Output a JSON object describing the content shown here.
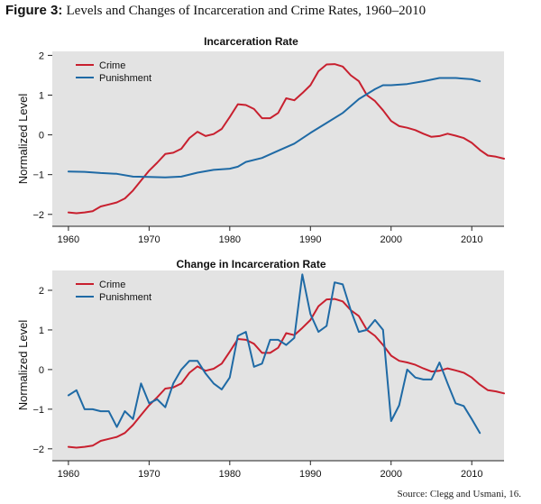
{
  "figure": {
    "label": "Figure 3:",
    "title": "Levels and Changes of Incarceration and Crime Rates, 1960–2010",
    "source": "Source: Clegg and Usmani, 16."
  },
  "colors": {
    "crime": "#c8202f",
    "punishment": "#1f6aa5",
    "panel_bg": "#e3e3e3"
  },
  "chart_data": [
    {
      "type": "line",
      "title": "Incarceration Rate",
      "xlabel": "",
      "ylabel": "Normalized Level",
      "xlim": [
        1958,
        2014
      ],
      "ylim": [
        -2.3,
        2.1
      ],
      "xticks": [
        1960,
        1970,
        1980,
        1990,
        2000,
        2010
      ],
      "yticks": [
        -2,
        -1,
        0,
        1,
        2
      ],
      "legend": "top-left",
      "series": [
        {
          "name": "Crime",
          "color": "#c8202f",
          "x": [
            1960,
            1961,
            1962,
            1963,
            1964,
            1965,
            1966,
            1967,
            1968,
            1969,
            1970,
            1971,
            1972,
            1973,
            1974,
            1975,
            1976,
            1977,
            1978,
            1979,
            1980,
            1981,
            1982,
            1983,
            1984,
            1985,
            1986,
            1987,
            1988,
            1989,
            1990,
            1991,
            1992,
            1993,
            1994,
            1995,
            1996,
            1997,
            1998,
            1999,
            2000,
            2001,
            2002,
            2003,
            2004,
            2005,
            2006,
            2007,
            2008,
            2009,
            2010,
            2011,
            2012,
            2013,
            2014
          ],
          "values": [
            -1.95,
            -1.97,
            -1.95,
            -1.92,
            -1.8,
            -1.75,
            -1.7,
            -1.6,
            -1.4,
            -1.15,
            -0.9,
            -0.7,
            -0.48,
            -0.45,
            -0.35,
            -0.08,
            0.08,
            -0.03,
            0.02,
            0.15,
            0.45,
            0.77,
            0.75,
            0.65,
            0.42,
            0.42,
            0.55,
            0.92,
            0.87,
            1.05,
            1.25,
            1.6,
            1.77,
            1.78,
            1.72,
            1.5,
            1.35,
            1.0,
            0.85,
            0.62,
            0.35,
            0.22,
            0.18,
            0.12,
            0.03,
            -0.05,
            -0.03,
            0.03,
            -0.02,
            -0.08,
            -0.2,
            -0.38,
            -0.52,
            -0.55,
            -0.6
          ]
        },
        {
          "name": "Punishment",
          "color": "#1f6aa5",
          "x": [
            1960,
            1962,
            1964,
            1966,
            1968,
            1970,
            1972,
            1974,
            1976,
            1978,
            1980,
            1981,
            1982,
            1984,
            1986,
            1988,
            1990,
            1992,
            1994,
            1996,
            1998,
            1999,
            2000,
            2002,
            2004,
            2006,
            2008,
            2010,
            2011
          ],
          "values": [
            -0.92,
            -0.93,
            -0.96,
            -0.98,
            -1.05,
            -1.06,
            -1.07,
            -1.05,
            -0.95,
            -0.88,
            -0.85,
            -0.8,
            -0.68,
            -0.58,
            -0.4,
            -0.22,
            0.05,
            0.3,
            0.55,
            0.9,
            1.15,
            1.25,
            1.25,
            1.28,
            1.35,
            1.43,
            1.43,
            1.4,
            1.35
          ]
        }
      ]
    },
    {
      "type": "line",
      "title": "Change in Incarceration Rate",
      "xlabel": "",
      "ylabel": "Normalized Level",
      "xlim": [
        1958,
        2014
      ],
      "ylim": [
        -2.3,
        2.5
      ],
      "xticks": [
        1960,
        1970,
        1980,
        1990,
        2000,
        2010
      ],
      "yticks": [
        -2,
        -1,
        0,
        1,
        2
      ],
      "legend": "top-left",
      "series": [
        {
          "name": "Crime",
          "color": "#c8202f",
          "x": [
            1960,
            1961,
            1962,
            1963,
            1964,
            1965,
            1966,
            1967,
            1968,
            1969,
            1970,
            1971,
            1972,
            1973,
            1974,
            1975,
            1976,
            1977,
            1978,
            1979,
            1980,
            1981,
            1982,
            1983,
            1984,
            1985,
            1986,
            1987,
            1988,
            1989,
            1990,
            1991,
            1992,
            1993,
            1994,
            1995,
            1996,
            1997,
            1998,
            1999,
            2000,
            2001,
            2002,
            2003,
            2004,
            2005,
            2006,
            2007,
            2008,
            2009,
            2010,
            2011,
            2012,
            2013,
            2014
          ],
          "values": [
            -1.95,
            -1.97,
            -1.95,
            -1.92,
            -1.8,
            -1.75,
            -1.7,
            -1.6,
            -1.4,
            -1.15,
            -0.9,
            -0.7,
            -0.48,
            -0.45,
            -0.35,
            -0.08,
            0.08,
            -0.03,
            0.02,
            0.15,
            0.45,
            0.77,
            0.75,
            0.65,
            0.42,
            0.42,
            0.55,
            0.92,
            0.87,
            1.05,
            1.25,
            1.6,
            1.77,
            1.78,
            1.72,
            1.5,
            1.35,
            1.0,
            0.85,
            0.62,
            0.35,
            0.22,
            0.18,
            0.12,
            0.03,
            -0.05,
            -0.03,
            0.03,
            -0.02,
            -0.08,
            -0.2,
            -0.38,
            -0.52,
            -0.55,
            -0.6
          ]
        },
        {
          "name": "Punishment",
          "color": "#1f6aa5",
          "x": [
            1960,
            1961,
            1962,
            1963,
            1964,
            1965,
            1966,
            1967,
            1968,
            1969,
            1970,
            1971,
            1972,
            1973,
            1974,
            1975,
            1976,
            1977,
            1978,
            1979,
            1980,
            1981,
            1982,
            1983,
            1984,
            1985,
            1986,
            1987,
            1988,
            1989,
            1990,
            1991,
            1992,
            1993,
            1994,
            1995,
            1996,
            1997,
            1998,
            1999,
            2000,
            2001,
            2002,
            2003,
            2004,
            2005,
            2006,
            2007,
            2008,
            2009,
            2010,
            2011
          ],
          "values": [
            -0.65,
            -0.52,
            -1.0,
            -1.0,
            -1.05,
            -1.05,
            -1.45,
            -1.05,
            -1.25,
            -0.35,
            -0.85,
            -0.75,
            -0.95,
            -0.35,
            0.0,
            0.22,
            0.22,
            -0.1,
            -0.35,
            -0.5,
            -0.2,
            0.85,
            0.95,
            0.07,
            0.15,
            0.75,
            0.75,
            0.62,
            0.8,
            2.4,
            1.4,
            0.95,
            1.1,
            2.2,
            2.15,
            1.5,
            0.95,
            1.0,
            1.25,
            1.0,
            -1.3,
            -0.9,
            0.0,
            -0.2,
            -0.25,
            -0.25,
            0.18,
            -0.35,
            -0.85,
            -0.92,
            -1.25,
            -1.6
          ]
        }
      ]
    }
  ]
}
